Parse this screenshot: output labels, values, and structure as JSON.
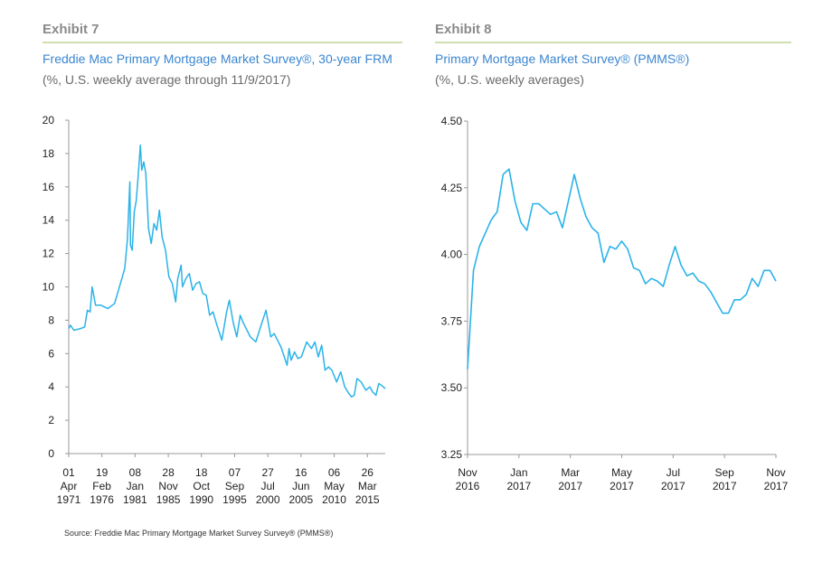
{
  "exhibits": [
    {
      "label": "Exhibit 7",
      "title": "Freddie Mac Primary Mortgage Market Survey®, 30-year FRM",
      "subtitle": "(%, U.S. weekly average through 11/9/2017)"
    },
    {
      "label": "Exhibit 8",
      "title": "Primary Mortgage Market Survey® (PMMS®)",
      "subtitle": "(%, U.S. weekly averages)"
    }
  ],
  "source": "Source: Freddie Mac Primary Mortgage Market Survey Survey® (PMMS®)",
  "colors": {
    "line": "#2bb3e8",
    "title": "#3b86d0",
    "rule": "#cfe0b0"
  },
  "chart_data": [
    {
      "type": "line",
      "title": "Freddie Mac Primary Mortgage Market Survey®, 30-year FRM",
      "ylim": [
        0,
        20
      ],
      "yticks": [
        "0",
        "2",
        "4",
        "6",
        "8",
        "10",
        "12",
        "14",
        "16",
        "18",
        "20"
      ],
      "xlim": [
        1971.25,
        2017.86
      ],
      "xticks": [
        {
          "x": 1971.25,
          "label": [
            "01",
            "Apr",
            "1971"
          ]
        },
        {
          "x": 1976.13,
          "label": [
            "19",
            "Feb",
            "1976"
          ]
        },
        {
          "x": 1981.02,
          "label": [
            "08",
            "Jan",
            "1981"
          ]
        },
        {
          "x": 1985.91,
          "label": [
            "28",
            "Nov",
            "1985"
          ]
        },
        {
          "x": 1990.79,
          "label": [
            "18",
            "Oct",
            "1990"
          ]
        },
        {
          "x": 1995.68,
          "label": [
            "07",
            "Sep",
            "1995"
          ]
        },
        {
          "x": 2000.57,
          "label": [
            "27",
            "Jul",
            "2000"
          ]
        },
        {
          "x": 2005.45,
          "label": [
            "16",
            "Jun",
            "2005"
          ]
        },
        {
          "x": 2010.34,
          "label": [
            "06",
            "May",
            "2010"
          ]
        },
        {
          "x": 2015.23,
          "label": [
            "26",
            "Mar",
            "2015"
          ]
        }
      ],
      "points": [
        [
          1971.25,
          7.5
        ],
        [
          1971.5,
          7.7
        ],
        [
          1972,
          7.4
        ],
        [
          1973,
          7.5
        ],
        [
          1973.6,
          7.6
        ],
        [
          1974,
          8.6
        ],
        [
          1974.4,
          8.5
        ],
        [
          1974.7,
          10.0
        ],
        [
          1975.2,
          8.9
        ],
        [
          1976,
          8.9
        ],
        [
          1977,
          8.7
        ],
        [
          1978,
          9.0
        ],
        [
          1978.5,
          9.7
        ],
        [
          1979,
          10.4
        ],
        [
          1979.5,
          11.1
        ],
        [
          1979.9,
          12.9
        ],
        [
          1980.25,
          16.3
        ],
        [
          1980.35,
          12.5
        ],
        [
          1980.6,
          12.2
        ],
        [
          1980.9,
          14.5
        ],
        [
          1981.2,
          15.2
        ],
        [
          1981.5,
          16.8
        ],
        [
          1981.8,
          18.5
        ],
        [
          1982,
          17.0
        ],
        [
          1982.3,
          17.5
        ],
        [
          1982.6,
          16.8
        ],
        [
          1983,
          13.5
        ],
        [
          1983.4,
          12.6
        ],
        [
          1983.8,
          13.8
        ],
        [
          1984.2,
          13.4
        ],
        [
          1984.6,
          14.6
        ],
        [
          1985,
          13.0
        ],
        [
          1985.5,
          12.2
        ],
        [
          1986,
          10.6
        ],
        [
          1986.5,
          10.2
        ],
        [
          1987,
          9.1
        ],
        [
          1987.3,
          10.5
        ],
        [
          1987.8,
          11.3
        ],
        [
          1988,
          10.0
        ],
        [
          1988.5,
          10.5
        ],
        [
          1989,
          10.8
        ],
        [
          1989.5,
          9.8
        ],
        [
          1990,
          10.2
        ],
        [
          1990.5,
          10.3
        ],
        [
          1991,
          9.6
        ],
        [
          1991.5,
          9.5
        ],
        [
          1992,
          8.3
        ],
        [
          1992.5,
          8.5
        ],
        [
          1993,
          7.8
        ],
        [
          1993.8,
          6.8
        ],
        [
          1994.5,
          8.5
        ],
        [
          1994.9,
          9.2
        ],
        [
          1995.5,
          7.8
        ],
        [
          1996,
          7.0
        ],
        [
          1996.5,
          8.3
        ],
        [
          1997,
          7.8
        ],
        [
          1998,
          7.0
        ],
        [
          1998.8,
          6.7
        ],
        [
          1999.5,
          7.6
        ],
        [
          2000.3,
          8.6
        ],
        [
          2001,
          7.0
        ],
        [
          2001.5,
          7.2
        ],
        [
          2002,
          6.8
        ],
        [
          2002.5,
          6.4
        ],
        [
          2003.4,
          5.3
        ],
        [
          2003.7,
          6.3
        ],
        [
          2004,
          5.6
        ],
        [
          2004.5,
          6.1
        ],
        [
          2005,
          5.7
        ],
        [
          2005.5,
          5.8
        ],
        [
          2006.3,
          6.7
        ],
        [
          2007,
          6.3
        ],
        [
          2007.5,
          6.7
        ],
        [
          2008,
          5.8
        ],
        [
          2008.5,
          6.5
        ],
        [
          2009,
          5.0
        ],
        [
          2009.5,
          5.2
        ],
        [
          2010,
          5.0
        ],
        [
          2010.7,
          4.3
        ],
        [
          2011.3,
          4.9
        ],
        [
          2011.9,
          4.0
        ],
        [
          2012.5,
          3.6
        ],
        [
          2012.9,
          3.4
        ],
        [
          2013.3,
          3.5
        ],
        [
          2013.7,
          4.5
        ],
        [
          2014.3,
          4.3
        ],
        [
          2015,
          3.8
        ],
        [
          2015.6,
          4.0
        ],
        [
          2016,
          3.7
        ],
        [
          2016.5,
          3.5
        ],
        [
          2016.9,
          4.2
        ],
        [
          2017.3,
          4.1
        ],
        [
          2017.86,
          3.9
        ]
      ]
    },
    {
      "type": "line",
      "title": "Primary Mortgage Market Survey® (PMMS®)",
      "ylim": [
        3.25,
        4.5
      ],
      "yticks": [
        "3.25",
        "3.50",
        "3.75",
        "4.00",
        "4.25",
        "4.50"
      ],
      "xlim": [
        "2016-11-10",
        "2017-11-09"
      ],
      "xticks": [
        [
          "Nov",
          "2016"
        ],
        [
          "Jan",
          "2017"
        ],
        [
          "Mar",
          "2017"
        ],
        [
          "May",
          "2017"
        ],
        [
          "Jul",
          "2017"
        ],
        [
          "Sep",
          "2017"
        ],
        [
          "Nov",
          "2017"
        ]
      ],
      "start": "2016-11-10",
      "frequency": "weekly",
      "values": [
        3.57,
        3.94,
        4.03,
        4.08,
        4.13,
        4.16,
        4.3,
        4.32,
        4.2,
        4.12,
        4.09,
        4.19,
        4.19,
        4.17,
        4.15,
        4.16,
        4.1,
        4.2,
        4.3,
        4.21,
        4.14,
        4.1,
        4.08,
        3.97,
        4.03,
        4.02,
        4.05,
        4.02,
        3.95,
        3.94,
        3.89,
        3.91,
        3.9,
        3.88,
        3.96,
        4.03,
        3.96,
        3.92,
        3.93,
        3.9,
        3.89,
        3.86,
        3.82,
        3.78,
        3.78,
        3.83,
        3.83,
        3.85,
        3.91,
        3.88,
        3.94,
        3.94,
        3.9
      ]
    }
  ]
}
